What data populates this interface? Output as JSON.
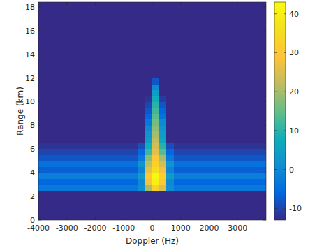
{
  "chart_data": {
    "type": "heatmap",
    "x_label": "Doppler (Hz)",
    "y_label": "Range (km)",
    "color": "parula",
    "xlim": [
      -4000,
      4000
    ],
    "ylim": [
      0,
      18.4
    ],
    "xticks": [
      -4000,
      -3000,
      -2000,
      -1000,
      0,
      1000,
      2000,
      3000
    ],
    "yticks": [
      0,
      2,
      4,
      6,
      8,
      10,
      12,
      14,
      16,
      18
    ],
    "x": [
      -3875,
      -3625,
      -3375,
      -3125,
      -2875,
      -2625,
      -2375,
      -2125,
      -1875,
      -1625,
      -1375,
      -1125,
      -875,
      -625,
      -375,
      -125,
      125,
      375,
      625,
      875,
      1125,
      1375,
      1625,
      1875,
      2125,
      2375,
      2625,
      2875,
      3125,
      3375,
      3625,
      3875
    ],
    "y": [
      0.25,
      0.75,
      1.25,
      1.75,
      2.25,
      2.75,
      3.25,
      3.75,
      4.25,
      4.75,
      5.25,
      5.75,
      6.25,
      6.75,
      7.25,
      7.75,
      8.25,
      8.75,
      9.25,
      9.75,
      10.25,
      10.75,
      11.25,
      11.75,
      12.25,
      12.75,
      13.25,
      13.75,
      14.25,
      14.75,
      15.25,
      15.75,
      16.25,
      16.75,
      17.25,
      17.75,
      18.25
    ],
    "values": [
      [
        -13,
        -13,
        -13,
        -13,
        -13,
        -13,
        -13,
        -13,
        -13,
        -13,
        -13,
        -13,
        -13,
        -13,
        -13,
        -13,
        -13,
        -13,
        -13,
        -13,
        -13,
        -13,
        -13,
        -13,
        -13,
        -13,
        -13,
        -13,
        -13,
        -13,
        -13,
        -13
      ],
      [
        -13,
        -13,
        -13,
        -13,
        -13,
        -13,
        -13,
        -13,
        -13,
        -13,
        -13,
        -13,
        -13,
        -13,
        -13,
        -13,
        -13,
        -13,
        -13,
        -13,
        -13,
        -13,
        -13,
        -13,
        -13,
        -13,
        -13,
        -13,
        -13,
        -13,
        -13,
        -13
      ],
      [
        -13,
        -13,
        -13,
        -13,
        -13,
        -13,
        -13,
        -13,
        -13,
        -13,
        -13,
        -13,
        -13,
        -13,
        -13,
        -13,
        -13,
        -13,
        -13,
        -13,
        -13,
        -13,
        -13,
        -13,
        -13,
        -13,
        -13,
        -13,
        -13,
        -13,
        -13,
        -13
      ],
      [
        -13,
        -13,
        -13,
        -13,
        -13,
        -13,
        -13,
        -13,
        -13,
        -13,
        -13,
        -13,
        -13,
        -13,
        -13,
        -13,
        -13,
        -13,
        -13,
        -13,
        -13,
        -13,
        -13,
        -13,
        -13,
        -13,
        -13,
        -13,
        -13,
        -13,
        -13,
        -13
      ],
      [
        -13,
        -13,
        -13,
        -13,
        -13,
        -13,
        -13,
        -13,
        -13,
        -13,
        -13,
        -13,
        -13,
        -13,
        -13,
        -13,
        -13,
        -13,
        -13,
        -13,
        -13,
        -13,
        -13,
        -13,
        -13,
        -13,
        -13,
        -13,
        -13,
        -13,
        -13,
        -13
      ],
      [
        -3,
        -3,
        -3,
        -3,
        -3,
        -3,
        -3,
        -3,
        -3,
        -3,
        -3,
        -3,
        -3,
        -3,
        1,
        20,
        33,
        25,
        1,
        -3,
        -3,
        -3,
        -3,
        -3,
        -3,
        -3,
        -3,
        -3,
        -3,
        -3,
        -3,
        -3
      ],
      [
        -6,
        -6,
        -6,
        -6,
        -6,
        -6,
        -6,
        -6,
        -6,
        -6,
        -6,
        -6,
        -6,
        -6,
        0,
        28,
        40,
        30,
        0,
        -6,
        -6,
        -6,
        -6,
        -6,
        -6,
        -6,
        -6,
        -6,
        -6,
        -6,
        -6,
        -6
      ],
      [
        -2,
        -2,
        -2,
        -2,
        -2,
        -2,
        -2,
        -2,
        -2,
        -2,
        -2,
        -2,
        -2,
        -2,
        4,
        30,
        42,
        32,
        4,
        -2,
        -2,
        -2,
        -2,
        -2,
        -2,
        -2,
        -2,
        -2,
        -2,
        -2,
        -2,
        -2
      ],
      [
        -7,
        -7,
        -7,
        -7,
        -7,
        -7,
        -7,
        -7,
        -7,
        -7,
        -7,
        -7,
        -7,
        -7,
        -1,
        26,
        36,
        28,
        -1,
        -7,
        -7,
        -7,
        -7,
        -7,
        -7,
        -7,
        -7,
        -7,
        -7,
        -7,
        -7,
        -7
      ],
      [
        -4,
        -4,
        -4,
        -4,
        -4,
        -4,
        -4,
        -4,
        -4,
        -4,
        -4,
        -4,
        -4,
        -4,
        2,
        22,
        33,
        24,
        2,
        -4,
        -4,
        -4,
        -4,
        -4,
        -4,
        -4,
        -4,
        -4,
        -4,
        -4,
        -4,
        -4
      ],
      [
        -8,
        -8,
        -8,
        -8,
        -8,
        -8,
        -8,
        -8,
        -8,
        -8,
        -8,
        -8,
        -8,
        -8,
        -3,
        18,
        30,
        20,
        -3,
        -8,
        -8,
        -8,
        -8,
        -8,
        -8,
        -8,
        -8,
        -8,
        -8,
        -8,
        -8,
        -8
      ],
      [
        -10,
        -10,
        -10,
        -10,
        -10,
        -10,
        -10,
        -10,
        -10,
        -10,
        -10,
        -10,
        -10,
        -10,
        -6,
        12,
        26,
        14,
        -6,
        -10,
        -10,
        -10,
        -10,
        -10,
        -10,
        -10,
        -10,
        -10,
        -10,
        -10,
        -10,
        -10
      ],
      [
        -12,
        -12,
        -12,
        -12,
        -12,
        -12,
        -12,
        -12,
        -12,
        -12,
        -12,
        -12,
        -12,
        -12,
        -9,
        8,
        24,
        10,
        -9,
        -12,
        -12,
        -12,
        -12,
        -12,
        -12,
        -12,
        -12,
        -12,
        -12,
        -12,
        -12,
        -12
      ],
      [
        -13,
        -13,
        -13,
        -13,
        -13,
        -13,
        -13,
        -13,
        -13,
        -13,
        -13,
        -13,
        -13,
        -13,
        -13,
        4,
        22,
        6,
        -13,
        -13,
        -13,
        -13,
        -13,
        -13,
        -13,
        -13,
        -13,
        -13,
        -13,
        -13,
        -13,
        -13
      ],
      [
        -13,
        -13,
        -13,
        -13,
        -13,
        -13,
        -13,
        -13,
        -13,
        -13,
        -13,
        -13,
        -13,
        -13,
        -13,
        2,
        20,
        4,
        -13,
        -13,
        -13,
        -13,
        -13,
        -13,
        -13,
        -13,
        -13,
        -13,
        -13,
        -13,
        -13,
        -13
      ],
      [
        -13,
        -13,
        -13,
        -13,
        -13,
        -13,
        -13,
        -13,
        -13,
        -13,
        -13,
        -13,
        -13,
        -13,
        -13,
        0,
        18,
        2,
        -13,
        -13,
        -13,
        -13,
        -13,
        -13,
        -13,
        -13,
        -13,
        -13,
        -13,
        -13,
        -13,
        -13
      ],
      [
        -13,
        -13,
        -13,
        -13,
        -13,
        -13,
        -13,
        -13,
        -13,
        -13,
        -13,
        -13,
        -13,
        -13,
        -13,
        -3,
        16,
        0,
        -13,
        -13,
        -13,
        -13,
        -13,
        -13,
        -13,
        -13,
        -13,
        -13,
        -13,
        -13,
        -13,
        -13
      ],
      [
        -13,
        -13,
        -13,
        -13,
        -13,
        -13,
        -13,
        -13,
        -13,
        -13,
        -13,
        -13,
        -13,
        -13,
        -13,
        -6,
        14,
        -4,
        -13,
        -13,
        -13,
        -13,
        -13,
        -13,
        -13,
        -13,
        -13,
        -13,
        -13,
        -13,
        -13,
        -13
      ],
      [
        -13,
        -13,
        -13,
        -13,
        -13,
        -13,
        -13,
        -13,
        -13,
        -13,
        -13,
        -13,
        -13,
        -13,
        -13,
        -8,
        12,
        -6,
        -13,
        -13,
        -13,
        -13,
        -13,
        -13,
        -13,
        -13,
        -13,
        -13,
        -13,
        -13,
        -13,
        -13
      ],
      [
        -13,
        -13,
        -13,
        -13,
        -13,
        -13,
        -13,
        -13,
        -13,
        -13,
        -13,
        -13,
        -13,
        -13,
        -13,
        -10,
        10,
        -8,
        -13,
        -13,
        -13,
        -13,
        -13,
        -13,
        -13,
        -13,
        -13,
        -13,
        -13,
        -13,
        -13,
        -13
      ],
      [
        -13,
        -13,
        -13,
        -13,
        -13,
        -13,
        -13,
        -13,
        -13,
        -13,
        -13,
        -13,
        -13,
        -13,
        -13,
        -12,
        8,
        -11,
        -13,
        -13,
        -13,
        -13,
        -13,
        -13,
        -13,
        -13,
        -13,
        -13,
        -13,
        -13,
        -13,
        -13
      ],
      [
        -13,
        -13,
        -13,
        -13,
        -13,
        -13,
        -13,
        -13,
        -13,
        -13,
        -13,
        -13,
        -13,
        -13,
        -13,
        -13,
        4,
        -13,
        -13,
        -13,
        -13,
        -13,
        -13,
        -13,
        -13,
        -13,
        -13,
        -13,
        -13,
        -13,
        -13,
        -13
      ],
      [
        -13,
        -13,
        -13,
        -13,
        -13,
        -13,
        -13,
        -13,
        -13,
        -13,
        -13,
        -13,
        -13,
        -13,
        -13,
        -13,
        0,
        -13,
        -13,
        -13,
        -13,
        -13,
        -13,
        -13,
        -13,
        -13,
        -13,
        -13,
        -13,
        -13,
        -13,
        -13
      ],
      [
        -13,
        -13,
        -13,
        -13,
        -13,
        -13,
        -13,
        -13,
        -13,
        -13,
        -13,
        -13,
        -13,
        -13,
        -13,
        -13,
        -8,
        -13,
        -13,
        -13,
        -13,
        -13,
        -13,
        -13,
        -13,
        -13,
        -13,
        -13,
        -13,
        -13,
        -13,
        -13
      ],
      [
        -13,
        -13,
        -13,
        -13,
        -13,
        -13,
        -13,
        -13,
        -13,
        -13,
        -13,
        -13,
        -13,
        -13,
        -13,
        -13,
        -13,
        -13,
        -13,
        -13,
        -13,
        -13,
        -13,
        -13,
        -13,
        -13,
        -13,
        -13,
        -13,
        -13,
        -13,
        -13
      ],
      [
        -13,
        -13,
        -13,
        -13,
        -13,
        -13,
        -13,
        -13,
        -13,
        -13,
        -13,
        -13,
        -13,
        -13,
        -13,
        -13,
        -13,
        -13,
        -13,
        -13,
        -13,
        -13,
        -13,
        -13,
        -13,
        -13,
        -13,
        -13,
        -13,
        -13,
        -13,
        -13
      ],
      [
        -13,
        -13,
        -13,
        -13,
        -13,
        -13,
        -13,
        -13,
        -13,
        -13,
        -13,
        -13,
        -13,
        -13,
        -13,
        -13,
        -13,
        -13,
        -13,
        -13,
        -13,
        -13,
        -13,
        -13,
        -13,
        -13,
        -13,
        -13,
        -13,
        -13,
        -13,
        -13
      ],
      [
        -13,
        -13,
        -13,
        -13,
        -13,
        -13,
        -13,
        -13,
        -13,
        -13,
        -13,
        -13,
        -13,
        -13,
        -13,
        -13,
        -13,
        -13,
        -13,
        -13,
        -13,
        -13,
        -13,
        -13,
        -13,
        -13,
        -13,
        -13,
        -13,
        -13,
        -13,
        -13
      ],
      [
        -13,
        -13,
        -13,
        -13,
        -13,
        -13,
        -13,
        -13,
        -13,
        -13,
        -13,
        -13,
        -13,
        -13,
        -13,
        -13,
        -13,
        -13,
        -13,
        -13,
        -13,
        -13,
        -13,
        -13,
        -13,
        -13,
        -13,
        -13,
        -13,
        -13,
        -13,
        -13
      ],
      [
        -13,
        -13,
        -13,
        -13,
        -13,
        -13,
        -13,
        -13,
        -13,
        -13,
        -13,
        -13,
        -13,
        -13,
        -13,
        -13,
        -13,
        -13,
        -13,
        -13,
        -13,
        -13,
        -13,
        -13,
        -13,
        -13,
        -13,
        -13,
        -13,
        -13,
        -13,
        -13
      ],
      [
        -13,
        -13,
        -13,
        -13,
        -13,
        -13,
        -13,
        -13,
        -13,
        -13,
        -13,
        -13,
        -13,
        -13,
        -13,
        -13,
        -13,
        -13,
        -13,
        -13,
        -13,
        -13,
        -13,
        -13,
        -13,
        -13,
        -13,
        -13,
        -13,
        -13,
        -13,
        -13
      ],
      [
        -13,
        -13,
        -13,
        -13,
        -13,
        -13,
        -13,
        -13,
        -13,
        -13,
        -13,
        -13,
        -13,
        -13,
        -13,
        -13,
        -13,
        -13,
        -13,
        -13,
        -13,
        -13,
        -13,
        -13,
        -13,
        -13,
        -13,
        -13,
        -13,
        -13,
        -13,
        -13
      ],
      [
        -13,
        -13,
        -13,
        -13,
        -13,
        -13,
        -13,
        -13,
        -13,
        -13,
        -13,
        -13,
        -13,
        -13,
        -13,
        -13,
        -13,
        -13,
        -13,
        -13,
        -13,
        -13,
        -13,
        -13,
        -13,
        -13,
        -13,
        -13,
        -13,
        -13,
        -13,
        -13
      ],
      [
        -13,
        -13,
        -13,
        -13,
        -13,
        -13,
        -13,
        -13,
        -13,
        -13,
        -13,
        -13,
        -13,
        -13,
        -13,
        -13,
        -13,
        -13,
        -13,
        -13,
        -13,
        -13,
        -13,
        -13,
        -13,
        -13,
        -13,
        -13,
        -13,
        -13,
        -13,
        -13
      ],
      [
        -13,
        -13,
        -13,
        -13,
        -13,
        -13,
        -13,
        -13,
        -13,
        -13,
        -13,
        -13,
        -13,
        -13,
        -13,
        -13,
        -13,
        -13,
        -13,
        -13,
        -13,
        -13,
        -13,
        -13,
        -13,
        -13,
        -13,
        -13,
        -13,
        -13,
        -13,
        -13
      ],
      [
        -13,
        -13,
        -13,
        -13,
        -13,
        -13,
        -13,
        -13,
        -13,
        -13,
        -13,
        -13,
        -13,
        -13,
        -13,
        -13,
        -13,
        -13,
        -13,
        -13,
        -13,
        -13,
        -13,
        -13,
        -13,
        -13,
        -13,
        -13,
        -13,
        -13,
        -13,
        -13
      ],
      [
        -13,
        -13,
        -13,
        -13,
        -13,
        -13,
        -13,
        -13,
        -13,
        -13,
        -13,
        -13,
        -13,
        -13,
        -13,
        -13,
        -13,
        -13,
        -13,
        -13,
        -13,
        -13,
        -13,
        -13,
        -13,
        -13,
        -13,
        -13,
        -13,
        -13,
        -13,
        -13
      ]
    ],
    "colorbar": {
      "lim": [
        -13,
        43
      ],
      "ticks": [
        -10,
        0,
        10,
        20,
        30,
        40
      ]
    }
  }
}
